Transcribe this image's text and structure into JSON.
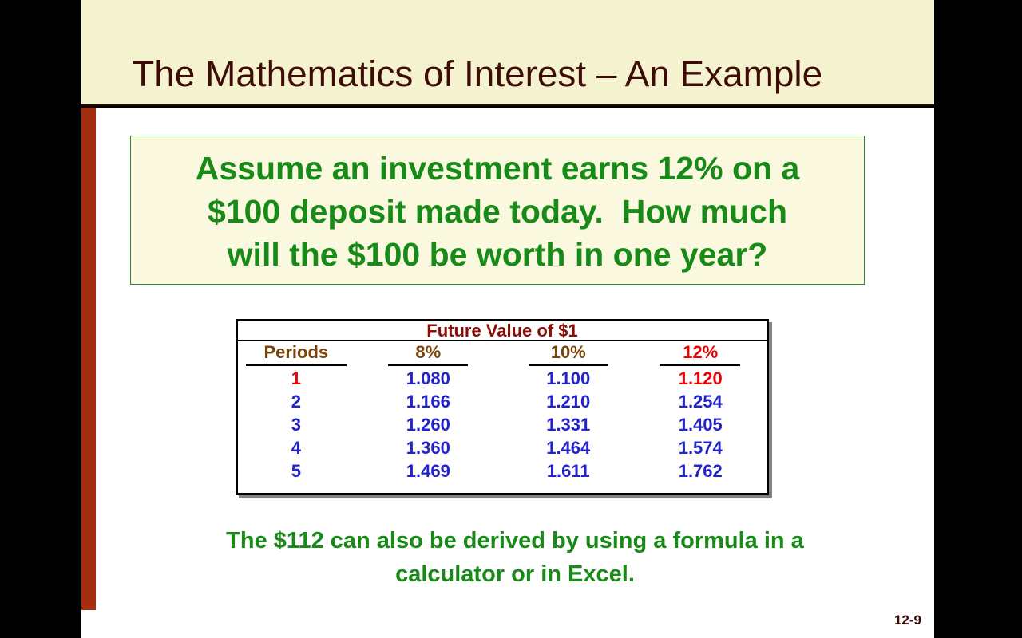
{
  "header": {
    "title": "The Mathematics of Interest – An Example"
  },
  "question": {
    "lines": [
      "Assume an investment earns 12% on a",
      "$100 deposit made today.  How much",
      "will the $100 be worth in one year?"
    ]
  },
  "table": {
    "title": "Future Value of $1",
    "headers": [
      "Periods",
      "8%",
      "10%",
      "12%"
    ],
    "rows": [
      {
        "period": "1",
        "v8": "1.080",
        "v10": "1.100",
        "v12": "1.120"
      },
      {
        "period": "2",
        "v8": "1.166",
        "v10": "1.210",
        "v12": "1.254"
      },
      {
        "period": "3",
        "v8": "1.260",
        "v10": "1.331",
        "v12": "1.405"
      },
      {
        "period": "4",
        "v8": "1.360",
        "v10": "1.464",
        "v12": "1.574"
      },
      {
        "period": "5",
        "v8": "1.469",
        "v10": "1.611",
        "v12": "1.762"
      }
    ],
    "highlight_note_colors": {
      "table_title": "#8B0D04",
      "header_brown": "#7B4408",
      "highlight_red": "#EE0000",
      "value_blue": "#2323CC"
    }
  },
  "bottom": {
    "lines": [
      "The $112 can also be derived by using a formula in a",
      "calculator or in Excel."
    ]
  },
  "footer": {
    "page_number": "12-9"
  },
  "theme": {
    "band_cream": "#F5F2CF",
    "title_maroon": "#3D0C07",
    "accent_brick": "#A52E11",
    "text_green": "#178A17",
    "box_fill": "#FAF9E0",
    "box_border_green": "#2E8B2E"
  }
}
